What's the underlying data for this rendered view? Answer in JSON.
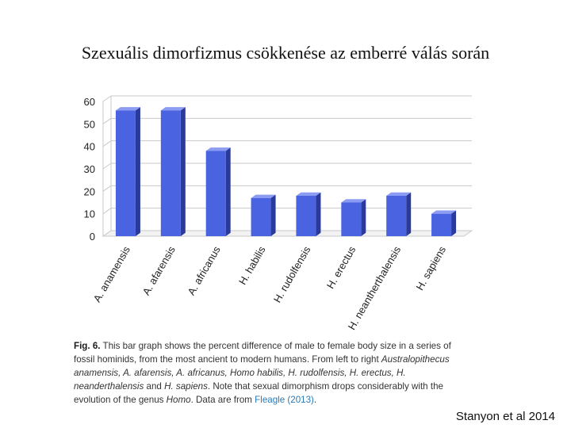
{
  "slide": {
    "title": "Szexuális dimorfizmus csökkenése az emberré válás során",
    "credit": "Stanyon et al 2014"
  },
  "caption": {
    "fig_label": "Fig. 6.",
    "text_1": " This bar graph shows the percent difference of male to female body size in a series of fossil hominids, from the most ancient to modern humans. From left to right ",
    "italic_1": "Australopithecus anamensis, A. afarensis, A. africanus, Homo habilis, H. rudolfensis, H. erectus, H. neanderthalensis",
    "text_2": " and ",
    "italic_2": "H. sapiens",
    "text_3": ". Note that sexual dimorphism drops considerably with the evolution of the genus ",
    "italic_3": "Homo",
    "text_4": ". Data are from ",
    "reference": "Fleagle (2013)",
    "text_5": "."
  },
  "chart_data": {
    "type": "bar",
    "categories": [
      "A. anamensis",
      "A. afarensis",
      "A. africanus",
      "H. habilis",
      "H. rudolfensis",
      "H. erectus",
      "H. neantherthalensis",
      "H. sapiens"
    ],
    "values": [
      56,
      56,
      38,
      17,
      18,
      15,
      18,
      10
    ],
    "yticks": [
      0,
      10,
      20,
      30,
      40,
      50,
      60
    ],
    "ylim": [
      0,
      60
    ],
    "grid": true,
    "style": "3d-bars",
    "colors": {
      "bar_front": "#4a63e0",
      "bar_side": "#2a3a9a",
      "bar_top": "#8b9cf2",
      "grid": "#c9c9c9",
      "axis_text": "#222222"
    }
  }
}
